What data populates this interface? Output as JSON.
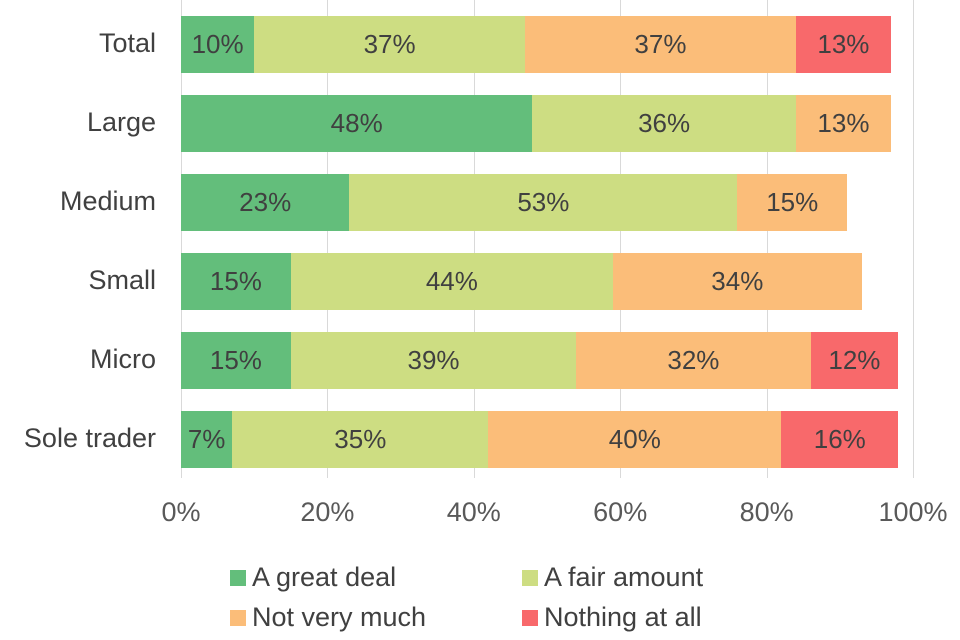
{
  "chart_data": {
    "type": "bar",
    "orientation": "horizontal",
    "stacked": true,
    "title": "",
    "xlabel": "",
    "ylabel": "",
    "xlim": [
      0,
      100
    ],
    "x_ticks": [
      "0%",
      "20%",
      "40%",
      "60%",
      "80%",
      "100%"
    ],
    "grid": true,
    "legend_position": "bottom",
    "categories": [
      "Total",
      "Large",
      "Medium",
      "Small",
      "Micro",
      "Sole trader"
    ],
    "series": [
      {
        "name": "A great deal",
        "color": "#63be7b",
        "values": [
          10,
          48,
          23,
          15,
          15,
          7
        ]
      },
      {
        "name": "A fair amount",
        "color": "#cddd82",
        "values": [
          37,
          36,
          53,
          44,
          39,
          35
        ]
      },
      {
        "name": "Not very much",
        "color": "#fbbd79",
        "values": [
          37,
          13,
          15,
          34,
          32,
          40
        ]
      },
      {
        "name": "Nothing at all",
        "color": "#f8696b",
        "values": [
          13,
          0,
          0,
          0,
          12,
          16
        ]
      }
    ],
    "data_labels": [
      [
        "10%",
        "37%",
        "37%",
        "13%"
      ],
      [
        "48%",
        "36%",
        "13%",
        ""
      ],
      [
        "23%",
        "53%",
        "15%",
        ""
      ],
      [
        "15%",
        "44%",
        "34%",
        ""
      ],
      [
        "15%",
        "39%",
        "32%",
        "12%"
      ],
      [
        "7%",
        "35%",
        "40%",
        "16%"
      ]
    ]
  }
}
